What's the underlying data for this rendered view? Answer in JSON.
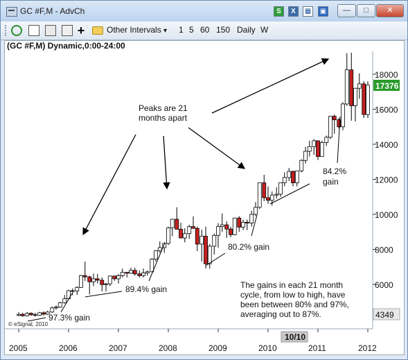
{
  "window": {
    "title": "GC #F,M - AdvCh"
  },
  "titlebar_icons": [
    {
      "name": "s-icon",
      "glyph": "S"
    },
    {
      "name": "x-icon",
      "glyph": "X"
    },
    {
      "name": "layout-icon",
      "glyph": ""
    },
    {
      "name": "window-icon",
      "glyph": ""
    }
  ],
  "toolbar": {
    "intervals_label": "Other Intervals",
    "dropdown_arrow": "▾",
    "intervals": [
      "1",
      "5",
      "60",
      "150",
      "Daily",
      "W"
    ]
  },
  "chart": {
    "header": "(GC #F,M) Dynamic,0:00-24:00",
    "logo": "© eSignal, 2010",
    "last_price": "17376",
    "last_price_color": "#2a9a2a",
    "low_value_label": "4349",
    "date_marker": "10/10"
  },
  "chart_data": {
    "type": "candlestick",
    "x_ticks": [
      "2005",
      "2006",
      "2007",
      "2008",
      "2009",
      "2010",
      "2011",
      "2012"
    ],
    "y_ticks": [
      6000,
      8000,
      10000,
      12000,
      14000,
      16000,
      18000
    ],
    "ylim": [
      3800,
      19800
    ],
    "up_color": "#ffffff",
    "down_color": "#c62020",
    "candles": [
      {
        "t": 2005.0,
        "o": 4230,
        "h": 4420,
        "l": 4180,
        "c": 4290
      },
      {
        "t": 2005.08,
        "o": 4290,
        "h": 4380,
        "l": 4150,
        "c": 4210
      },
      {
        "t": 2005.17,
        "o": 4210,
        "h": 4420,
        "l": 4170,
        "c": 4350
      },
      {
        "t": 2005.25,
        "o": 4350,
        "h": 4400,
        "l": 4200,
        "c": 4270
      },
      {
        "t": 2005.33,
        "o": 4270,
        "h": 4380,
        "l": 4160,
        "c": 4230
      },
      {
        "t": 2005.42,
        "o": 4230,
        "h": 4430,
        "l": 4200,
        "c": 4380
      },
      {
        "t": 2005.5,
        "o": 4380,
        "h": 4460,
        "l": 4220,
        "c": 4300
      },
      {
        "t": 2005.58,
        "o": 4300,
        "h": 4500,
        "l": 4250,
        "c": 4420
      },
      {
        "t": 2005.67,
        "o": 4420,
        "h": 4740,
        "l": 4380,
        "c": 4660
      },
      {
        "t": 2005.75,
        "o": 4660,
        "h": 4800,
        "l": 4560,
        "c": 4700
      },
      {
        "t": 2005.83,
        "o": 4700,
        "h": 5000,
        "l": 4660,
        "c": 4950
      },
      {
        "t": 2005.92,
        "o": 4950,
        "h": 5400,
        "l": 4900,
        "c": 5180
      },
      {
        "t": 2006.0,
        "o": 5180,
        "h": 5700,
        "l": 5120,
        "c": 5640
      },
      {
        "t": 2006.08,
        "o": 5640,
        "h": 5770,
        "l": 5380,
        "c": 5620
      },
      {
        "t": 2006.17,
        "o": 5620,
        "h": 5900,
        "l": 5400,
        "c": 5830
      },
      {
        "t": 2006.25,
        "o": 5830,
        "h": 6540,
        "l": 5800,
        "c": 6500
      },
      {
        "t": 2006.33,
        "o": 6500,
        "h": 7300,
        "l": 6200,
        "c": 6430
      },
      {
        "t": 2006.42,
        "o": 6430,
        "h": 6500,
        "l": 5430,
        "c": 6150
      },
      {
        "t": 2006.5,
        "o": 6150,
        "h": 6620,
        "l": 5900,
        "c": 6320
      },
      {
        "t": 2006.58,
        "o": 6320,
        "h": 6600,
        "l": 6060,
        "c": 6240
      },
      {
        "t": 2006.67,
        "o": 6240,
        "h": 6400,
        "l": 5600,
        "c": 5990
      },
      {
        "t": 2006.75,
        "o": 5990,
        "h": 6090,
        "l": 5600,
        "c": 6030
      },
      {
        "t": 2006.83,
        "o": 6030,
        "h": 6500,
        "l": 5900,
        "c": 6480
      },
      {
        "t": 2006.92,
        "o": 6480,
        "h": 6470,
        "l": 6200,
        "c": 6320
      },
      {
        "t": 2007.0,
        "o": 6320,
        "h": 6600,
        "l": 6050,
        "c": 6500
      },
      {
        "t": 2007.08,
        "o": 6500,
        "h": 6900,
        "l": 6400,
        "c": 6690
      },
      {
        "t": 2007.17,
        "o": 6690,
        "h": 6700,
        "l": 6400,
        "c": 6640
      },
      {
        "t": 2007.25,
        "o": 6640,
        "h": 6950,
        "l": 6600,
        "c": 6800
      },
      {
        "t": 2007.33,
        "o": 6800,
        "h": 6950,
        "l": 6500,
        "c": 6600
      },
      {
        "t": 2007.42,
        "o": 6600,
        "h": 6800,
        "l": 6400,
        "c": 6500
      },
      {
        "t": 2007.5,
        "o": 6500,
        "h": 6900,
        "l": 6400,
        "c": 6650
      },
      {
        "t": 2007.58,
        "o": 6650,
        "h": 6800,
        "l": 6500,
        "c": 6720
      },
      {
        "t": 2007.67,
        "o": 6720,
        "h": 7500,
        "l": 6700,
        "c": 7440
      },
      {
        "t": 2007.75,
        "o": 7440,
        "h": 7950,
        "l": 7300,
        "c": 7920
      },
      {
        "t": 2007.83,
        "o": 7920,
        "h": 8450,
        "l": 7800,
        "c": 8100
      },
      {
        "t": 2007.92,
        "o": 8100,
        "h": 8400,
        "l": 7800,
        "c": 8340
      },
      {
        "t": 2008.0,
        "o": 8340,
        "h": 9300,
        "l": 8250,
        "c": 9230
      },
      {
        "t": 2008.08,
        "o": 9230,
        "h": 9750,
        "l": 8750,
        "c": 9720
      },
      {
        "t": 2008.17,
        "o": 9720,
        "h": 10400,
        "l": 9150,
        "c": 9150
      },
      {
        "t": 2008.25,
        "o": 9150,
        "h": 9520,
        "l": 8700,
        "c": 8650
      },
      {
        "t": 2008.33,
        "o": 8650,
        "h": 9200,
        "l": 8400,
        "c": 8900
      },
      {
        "t": 2008.42,
        "o": 8900,
        "h": 9400,
        "l": 8600,
        "c": 9300
      },
      {
        "t": 2008.5,
        "o": 9300,
        "h": 9880,
        "l": 9180,
        "c": 9200
      },
      {
        "t": 2008.58,
        "o": 9200,
        "h": 9300,
        "l": 7900,
        "c": 8300
      },
      {
        "t": 2008.67,
        "o": 8300,
        "h": 9120,
        "l": 7300,
        "c": 8750
      },
      {
        "t": 2008.75,
        "o": 8750,
        "h": 9300,
        "l": 6900,
        "c": 7180
      },
      {
        "t": 2008.83,
        "o": 7180,
        "h": 8300,
        "l": 6900,
        "c": 8180
      },
      {
        "t": 2008.92,
        "o": 8180,
        "h": 8900,
        "l": 7700,
        "c": 8800
      },
      {
        "t": 2009.0,
        "o": 8800,
        "h": 9500,
        "l": 8100,
        "c": 9300
      },
      {
        "t": 2009.08,
        "o": 9300,
        "h": 10050,
        "l": 9000,
        "c": 9400
      },
      {
        "t": 2009.17,
        "o": 9400,
        "h": 9600,
        "l": 8650,
        "c": 9160
      },
      {
        "t": 2009.25,
        "o": 9160,
        "h": 9300,
        "l": 8700,
        "c": 8840
      },
      {
        "t": 2009.33,
        "o": 8840,
        "h": 9800,
        "l": 8800,
        "c": 9790
      },
      {
        "t": 2009.42,
        "o": 9790,
        "h": 9900,
        "l": 9000,
        "c": 9270
      },
      {
        "t": 2009.5,
        "o": 9270,
        "h": 9700,
        "l": 9100,
        "c": 9550
      },
      {
        "t": 2009.58,
        "o": 9550,
        "h": 9700,
        "l": 9100,
        "c": 9500
      },
      {
        "t": 2009.67,
        "o": 9500,
        "h": 10200,
        "l": 9300,
        "c": 10000
      },
      {
        "t": 2009.75,
        "o": 10000,
        "h": 10700,
        "l": 9900,
        "c": 10400
      },
      {
        "t": 2009.83,
        "o": 10400,
        "h": 11800,
        "l": 10300,
        "c": 11800
      },
      {
        "t": 2009.92,
        "o": 11800,
        "h": 12260,
        "l": 10750,
        "c": 10950
      },
      {
        "t": 2010.0,
        "o": 10950,
        "h": 11600,
        "l": 10600,
        "c": 10800
      },
      {
        "t": 2010.08,
        "o": 10800,
        "h": 11300,
        "l": 10500,
        "c": 11100
      },
      {
        "t": 2010.17,
        "o": 11100,
        "h": 11550,
        "l": 10900,
        "c": 11150
      },
      {
        "t": 2010.25,
        "o": 11150,
        "h": 11800,
        "l": 11000,
        "c": 11800
      },
      {
        "t": 2010.33,
        "o": 11800,
        "h": 12400,
        "l": 11600,
        "c": 12100
      },
      {
        "t": 2010.42,
        "o": 12100,
        "h": 12650,
        "l": 11900,
        "c": 12450
      },
      {
        "t": 2010.5,
        "o": 12450,
        "h": 12500,
        "l": 11600,
        "c": 11800
      },
      {
        "t": 2010.58,
        "o": 11800,
        "h": 12500,
        "l": 11600,
        "c": 12480
      },
      {
        "t": 2010.67,
        "o": 12480,
        "h": 13150,
        "l": 12400,
        "c": 13080
      },
      {
        "t": 2010.75,
        "o": 13080,
        "h": 13850,
        "l": 12900,
        "c": 13600
      },
      {
        "t": 2010.83,
        "o": 13600,
        "h": 14200,
        "l": 13300,
        "c": 13870
      },
      {
        "t": 2010.92,
        "o": 13870,
        "h": 14300,
        "l": 13400,
        "c": 14200
      },
      {
        "t": 2011.0,
        "o": 14200,
        "h": 14200,
        "l": 13100,
        "c": 13300
      },
      {
        "t": 2011.08,
        "o": 13300,
        "h": 14200,
        "l": 13300,
        "c": 14100
      },
      {
        "t": 2011.17,
        "o": 14100,
        "h": 14500,
        "l": 13900,
        "c": 14400
      },
      {
        "t": 2011.25,
        "o": 14400,
        "h": 15600,
        "l": 14300,
        "c": 15600
      },
      {
        "t": 2011.33,
        "o": 15600,
        "h": 15700,
        "l": 14600,
        "c": 15400
      },
      {
        "t": 2011.42,
        "o": 15400,
        "h": 15500,
        "l": 14900,
        "c": 15000
      },
      {
        "t": 2011.5,
        "o": 15000,
        "h": 16400,
        "l": 14800,
        "c": 16300
      },
      {
        "t": 2011.58,
        "o": 16300,
        "h": 19200,
        "l": 16200,
        "c": 18250
      },
      {
        "t": 2011.67,
        "o": 18250,
        "h": 19230,
        "l": 15350,
        "c": 16200
      },
      {
        "t": 2011.75,
        "o": 16200,
        "h": 17200,
        "l": 15300,
        "c": 17200
      },
      {
        "t": 2011.83,
        "o": 17200,
        "h": 18050,
        "l": 16600,
        "c": 17450
      },
      {
        "t": 2011.92,
        "o": 17450,
        "h": 17600,
        "l": 15500,
        "c": 15700
      },
      {
        "t": 2012.0,
        "o": 15700,
        "h": 17600,
        "l": 15500,
        "c": 17376
      }
    ],
    "annotations": {
      "peaks": [
        "Peaks are 21",
        "months apart"
      ],
      "gain_973": "97.3% gain",
      "gain_894": "89.4% gain",
      "gain_802": "80.2% gain",
      "gain_842": [
        "84.2%",
        "gain"
      ],
      "summary": [
        "The gains in each 21 month",
        "cycle, from low to high, have",
        "been between 80% and 97%,",
        "averaging out to 87%."
      ]
    }
  }
}
